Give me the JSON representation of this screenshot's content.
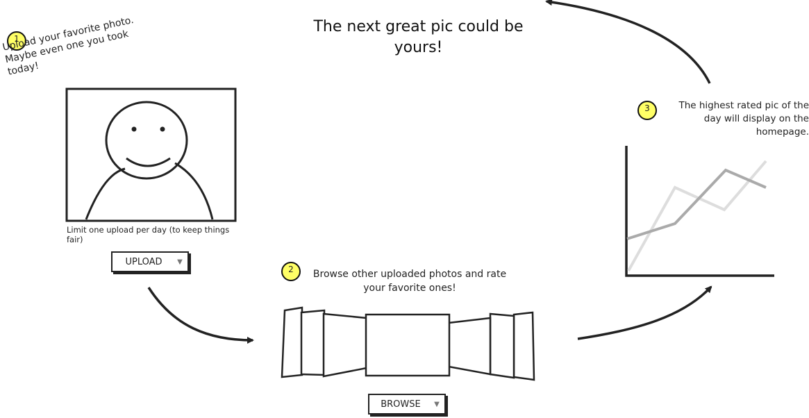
{
  "headline": "The next great pic could be yours!",
  "steps": [
    {
      "number": "1",
      "text": "Upload your favorite photo. Maybe even one you took today!"
    },
    {
      "number": "2",
      "text": "Browse other uploaded photos and rate your favorite ones!"
    },
    {
      "number": "3",
      "text": "The highest rated pic of the day will display on the homepage."
    }
  ],
  "upload": {
    "note": "Limit one upload per day (to keep things fair)",
    "button_label": "UPLOAD"
  },
  "browse": {
    "button_label": "BROWSE"
  },
  "colors": {
    "badge": "#ffff66",
    "ink": "#222222",
    "line_light": "#dddddd",
    "line_mid": "#aaaaaa"
  },
  "icons": [
    "smiley-face-icon",
    "photo-carousel-icon",
    "line-chart-icon",
    "dropdown-caret-icon",
    "cycle-arrow-icon"
  ]
}
